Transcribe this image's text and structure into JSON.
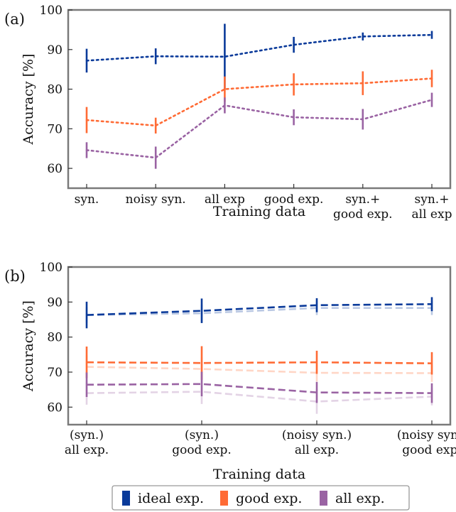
{
  "colors": {
    "ideal": "#0a3a9a",
    "good": "#ff6b35",
    "all": "#9a63a3"
  },
  "legend": [
    {
      "label": "ideal exp.",
      "color": "#0a3a9a"
    },
    {
      "label": "good exp.",
      "color": "#ff6b35"
    },
    {
      "label": "all exp.",
      "color": "#9a63a3"
    }
  ],
  "chart_data": [
    {
      "type": "line",
      "panel_label": "(a)",
      "xlabel": "Training data",
      "ylabel": "Accuracy [%]",
      "ylim": [
        55,
        100
      ],
      "yticks": [
        60,
        70,
        80,
        90,
        100
      ],
      "line_style": "dotted",
      "categories": [
        [
          "syn."
        ],
        [
          "noisy syn."
        ],
        [
          "all exp"
        ],
        [
          "good exp."
        ],
        [
          "syn.+",
          "good exp."
        ],
        [
          "syn.+",
          "all exp"
        ]
      ],
      "series": [
        {
          "key": "ideal",
          "values": [
            87.2,
            88.3,
            88.2,
            91.2,
            93.3,
            93.7
          ],
          "err": [
            3.0,
            2.0,
            8.3,
            2.0,
            1.0,
            1.0
          ]
        },
        {
          "key": "good",
          "values": [
            72.2,
            70.8,
            80.0,
            81.2,
            81.5,
            82.7
          ],
          "err": [
            3.3,
            2.0,
            3.2,
            2.8,
            3.0,
            2.2
          ]
        },
        {
          "key": "all",
          "values": [
            64.6,
            62.7,
            75.9,
            72.9,
            72.4,
            77.3
          ],
          "err": [
            2.0,
            2.8,
            2.0,
            2.0,
            2.6,
            1.8
          ]
        }
      ]
    },
    {
      "type": "line",
      "panel_label": "(b)",
      "xlabel": "Training data",
      "ylabel": "Accuracy [%]",
      "ylim": [
        55,
        100
      ],
      "yticks": [
        60,
        70,
        80,
        90,
        100
      ],
      "line_style": "dashed",
      "categories": [
        [
          "(syn.)",
          "all exp."
        ],
        [
          "(syn.)",
          "good exp."
        ],
        [
          "(noisy syn.)",
          "all exp."
        ],
        [
          "(noisy syn.)",
          "good exp."
        ]
      ],
      "series": [
        {
          "key": "ideal",
          "values": [
            86.3,
            87.5,
            89.1,
            89.4
          ],
          "err": [
            3.8,
            3.5,
            2.0,
            2.0
          ]
        },
        {
          "key": "good",
          "values": [
            72.8,
            72.6,
            72.8,
            72.5
          ],
          "err": [
            4.5,
            4.8,
            3.3,
            3.2
          ]
        },
        {
          "key": "all",
          "values": [
            66.4,
            66.6,
            64.2,
            64.0
          ],
          "err": [
            3.5,
            3.5,
            3.0,
            2.8
          ]
        },
        {
          "key": "ideal",
          "faded": true,
          "values": [
            86.3,
            86.8,
            88.3,
            88.3
          ],
          "err": [
            2.2,
            2.5,
            2.0,
            2.0
          ]
        },
        {
          "key": "good",
          "faded": true,
          "values": [
            71.5,
            70.9,
            69.8,
            69.7
          ],
          "err": [
            3.3,
            3.3,
            2.5,
            2.5
          ]
        },
        {
          "key": "all",
          "faded": true,
          "values": [
            64.0,
            64.4,
            61.6,
            63.0
          ],
          "err": [
            3.3,
            3.5,
            3.5,
            2.5
          ]
        }
      ]
    }
  ]
}
